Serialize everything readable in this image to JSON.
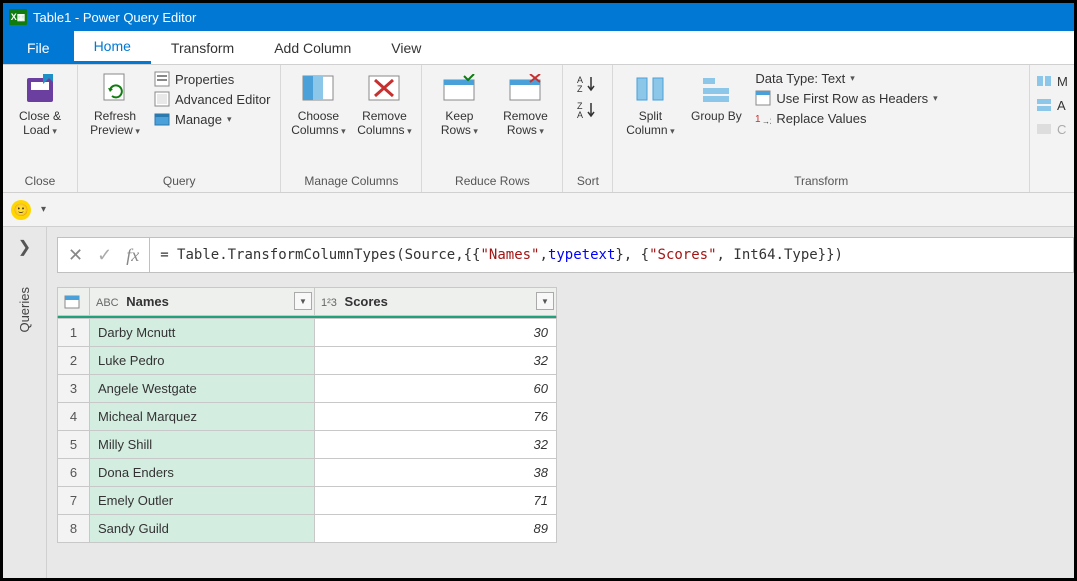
{
  "window": {
    "title": "Table1 - Power Query Editor",
    "logo_text": "X▦"
  },
  "tabs": {
    "file": "File",
    "home": "Home",
    "transform": "Transform",
    "addcolumn": "Add Column",
    "view": "View"
  },
  "ribbon": {
    "close": {
      "close_load": "Close & Load",
      "group": "Close"
    },
    "query": {
      "refresh": "Refresh Preview",
      "properties": "Properties",
      "advanced": "Advanced Editor",
      "manage": "Manage",
      "group": "Query"
    },
    "managecols": {
      "choose": "Choose Columns",
      "remove": "Remove Columns",
      "group": "Manage Columns"
    },
    "reducerows": {
      "keep": "Keep Rows",
      "remove": "Remove Rows",
      "group": "Reduce Rows"
    },
    "sort": {
      "group": "Sort"
    },
    "transform": {
      "split": "Split Column",
      "groupby": "Group By",
      "datatype": "Data Type: Text",
      "firstrow": "Use First Row as Headers",
      "replace": "Replace Values",
      "group": "Transform"
    },
    "right": {
      "m": "M",
      "a": "A",
      "c": "C"
    }
  },
  "side": {
    "label": "Queries"
  },
  "formula": {
    "prefix": "= Table.TransformColumnTypes(Source,{{",
    "s1": "\"Names\"",
    "mid1": ", ",
    "kw1": "type",
    "sp": " ",
    "kw2": "text",
    "mid2": "}, {",
    "s2": "\"Scores\"",
    "mid3": ", Int64.Type}})"
  },
  "table": {
    "col1_type": "ABC",
    "col1_name": "Names",
    "col2_type": "1²3",
    "col2_name": "Scores",
    "rows": [
      {
        "n": "1",
        "name": "Darby Mcnutt",
        "score": "30"
      },
      {
        "n": "2",
        "name": "Luke Pedro",
        "score": "32"
      },
      {
        "n": "3",
        "name": "Angele Westgate",
        "score": "60"
      },
      {
        "n": "4",
        "name": "Micheal Marquez",
        "score": "76"
      },
      {
        "n": "5",
        "name": "Milly Shill",
        "score": "32"
      },
      {
        "n": "6",
        "name": "Dona Enders",
        "score": "38"
      },
      {
        "n": "7",
        "name": "Emely Outler",
        "score": "71"
      },
      {
        "n": "8",
        "name": "Sandy Guild",
        "score": "89"
      }
    ]
  },
  "colors": {
    "brand": "#0078d4",
    "accent": "#21a179",
    "sel": "#d4ede1"
  }
}
